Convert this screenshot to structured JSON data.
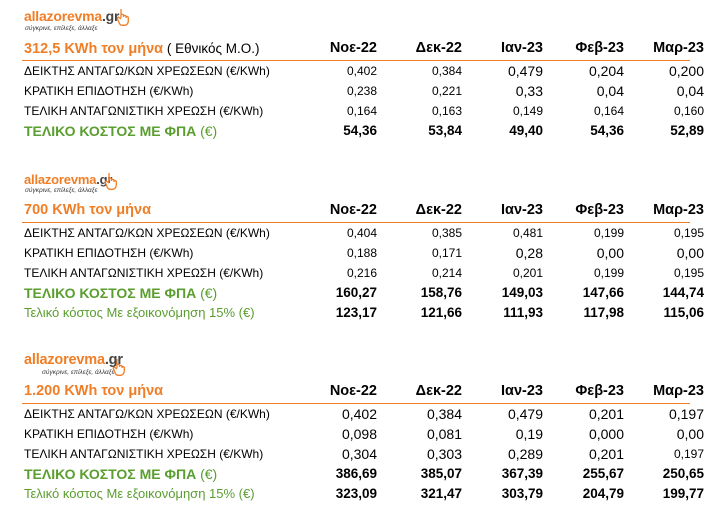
{
  "logo": {
    "name_main": "allazorevma",
    "name_tld": ".gr",
    "tagline": "σύγκρινε, επίλεξε, άλλαξε",
    "brand_color": "#f07e26"
  },
  "months": [
    "Νοε-22",
    "Δεκ-22",
    "Ιαν-23",
    "Φεβ-23",
    "Μαρ-23"
  ],
  "blocks": [
    {
      "title": "312,5 KWh τον μήνα",
      "title_note": " ( Εθνικός Μ.Ο.)",
      "rows": [
        {
          "label": "ΔΕΙΚΤΗΣ ΑΝΤΑΓΩ/ΚΩΝ ΧΡΕΩΣΕΩΝ",
          "unit": " (€/KWh)",
          "values": [
            "0,402",
            "0,384",
            "0,479",
            "0,204",
            "0,200"
          ]
        },
        {
          "label": "ΚΡΑΤΙΚΗ ΕΠΙΔΟΤΗΣΗ",
          "unit": "  (€/KWh)",
          "values": [
            "0,238",
            "0,221",
            "0,33",
            "0,04",
            "0,04"
          ]
        },
        {
          "label": "ΤΕΛΙΚΗ ΑΝΤΑΓΩΝΙΣΤΙΚΗ ΧΡΕΩΣΗ",
          "unit": "  (€/KWh)",
          "values": [
            "0,164",
            "0,163",
            "0,149",
            "0,164",
            "0,160"
          ]
        }
      ],
      "total": {
        "label": "ΤΕΛΙΚΟ ΚΟΣΤΟΣ ΜΕ ΦΠΑ",
        "unit": " (€)",
        "values": [
          "54,36",
          "53,84",
          "49,40",
          "54,36",
          "52,89"
        ]
      }
    },
    {
      "title": "700 KWh τον μήνα",
      "rows": [
        {
          "label": "ΔΕΙΚΤΗΣ ΑΝΤΑΓΩ/ΚΩΝ ΧΡΕΩΣΕΩΝ",
          "unit": " (€/KWh)",
          "values": [
            "0,404",
            "0,385",
            "0,481",
            "0,199",
            "0,195"
          ]
        },
        {
          "label": "ΚΡΑΤΙΚΗ ΕΠΙΔΟΤΗΣΗ",
          "unit": "  (€/KWh)",
          "values": [
            "0,188",
            "0,171",
            "0,28",
            "0,00",
            "0,00"
          ]
        },
        {
          "label": "ΤΕΛΙΚΗ ΑΝΤΑΓΩΝΙΣΤΙΚΗ ΧΡΕΩΣΗ",
          "unit": "  (€/KWh)",
          "values": [
            "0,216",
            "0,214",
            "0,201",
            "0,199",
            "0,195"
          ]
        }
      ],
      "total": {
        "label": "ΤΕΛΙΚΟ ΚΟΣΤΟΣ ΜΕ ΦΠΑ",
        "unit": " (€)",
        "values": [
          "160,27",
          "158,76",
          "149,03",
          "147,66",
          "144,74"
        ]
      },
      "saving": {
        "label": "Τελικό κόστος Με εξοικονόμηση 15% (€)",
        "values": [
          "123,17",
          "121,66",
          "111,93",
          "117,98",
          "115,06"
        ]
      }
    },
    {
      "title": "1.200 KWh τον μήνα",
      "rows": [
        {
          "label": "ΔΕΙΚΤΗΣ ΑΝΤΑΓΩ/ΚΩΝ ΧΡΕΩΣΕΩΝ",
          "unit": " (€/KWh)",
          "values": [
            "0,402",
            "0,384",
            "0,479",
            "0,201",
            "0,197"
          ]
        },
        {
          "label": "ΚΡΑΤΙΚΗ ΕΠΙΔΟΤΗΣΗ",
          "unit": "  (€/KWh)",
          "values": [
            "0,098",
            "0,081",
            "0,19",
            "0,000",
            "0,00"
          ]
        },
        {
          "label": "ΤΕΛΙΚΗ ΑΝΤΑΓΩΝΙΣΤΙΚΗ ΧΡΕΩΣΗ",
          "unit": "  (€/KWh)",
          "values": [
            "0,304",
            "0,303",
            "0,289",
            "0,201",
            "0,197"
          ]
        }
      ],
      "total": {
        "label": "ΤΕΛΙΚΟ ΚΟΣΤΟΣ ΜΕ ΦΠΑ",
        "unit": " (€)",
        "values": [
          "386,69",
          "385,07",
          "367,39",
          "255,67",
          "250,65"
        ]
      },
      "saving": {
        "label": "Τελικό κόστος Με εξοικονόμηση 15% (€)",
        "values": [
          "323,09",
          "321,47",
          "303,79",
          "204,79",
          "199,77"
        ]
      }
    }
  ]
}
